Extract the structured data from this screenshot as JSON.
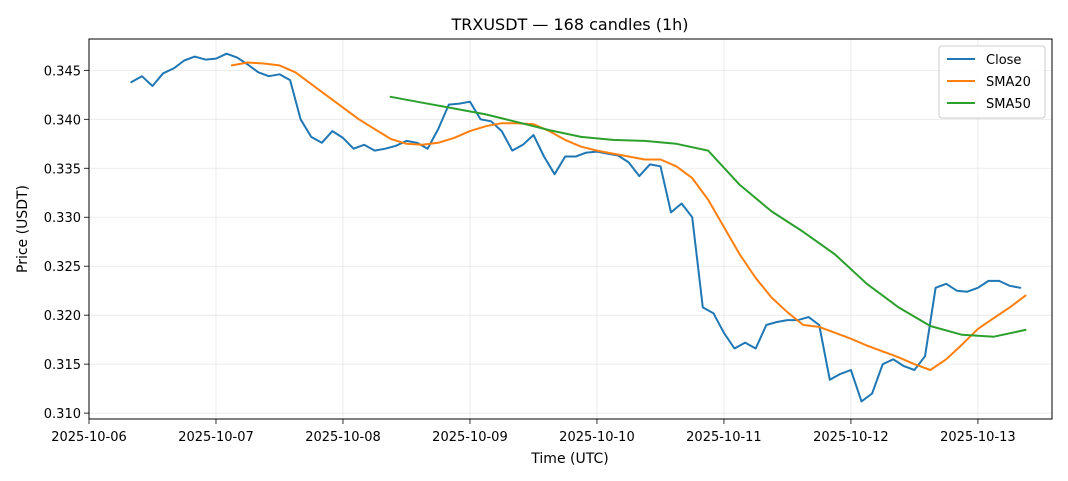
{
  "chart_data": {
    "type": "line",
    "title": "TRXUSDT — 168 candles (1h)",
    "xlabel": "Time (UTC)",
    "ylabel": "Price (USDT)",
    "x_ticks": [
      "2025-10-06",
      "2025-10-07",
      "2025-10-08",
      "2025-10-09",
      "2025-10-10",
      "2025-10-11",
      "2025-10-12",
      "2025-10-13"
    ],
    "y_ticks": [
      "0.310",
      "0.315",
      "0.320",
      "0.325",
      "0.330",
      "0.335",
      "0.340",
      "0.345"
    ],
    "xlim": [
      "2025-10-06 00:00",
      "2025-10-13 14:00"
    ],
    "ylim": [
      0.3094,
      0.3482
    ],
    "grid": true,
    "legend_position": "top-right",
    "series": [
      {
        "name": "Close",
        "color": "#1f77b4",
        "points": [
          [
            "2025-10-06 08:00",
            0.3438
          ],
          [
            "2025-10-06 10:00",
            0.3444
          ],
          [
            "2025-10-06 12:00",
            0.3434
          ],
          [
            "2025-10-06 14:00",
            0.3447
          ],
          [
            "2025-10-06 16:00",
            0.3452
          ],
          [
            "2025-10-06 18:00",
            0.346
          ],
          [
            "2025-10-06 20:00",
            0.3464
          ],
          [
            "2025-10-06 22:00",
            0.3461
          ],
          [
            "2025-10-07 00:00",
            0.3462
          ],
          [
            "2025-10-07 02:00",
            0.3467
          ],
          [
            "2025-10-07 04:00",
            0.3463
          ],
          [
            "2025-10-07 06:00",
            0.3456
          ],
          [
            "2025-10-07 08:00",
            0.3448
          ],
          [
            "2025-10-07 10:00",
            0.3444
          ],
          [
            "2025-10-07 12:00",
            0.3446
          ],
          [
            "2025-10-07 14:00",
            0.344
          ],
          [
            "2025-10-07 16:00",
            0.34
          ],
          [
            "2025-10-07 18:00",
            0.3382
          ],
          [
            "2025-10-07 20:00",
            0.3376
          ],
          [
            "2025-10-07 22:00",
            0.3388
          ],
          [
            "2025-10-08 00:00",
            0.3381
          ],
          [
            "2025-10-08 02:00",
            0.337
          ],
          [
            "2025-10-08 04:00",
            0.3374
          ],
          [
            "2025-10-08 06:00",
            0.3368
          ],
          [
            "2025-10-08 08:00",
            0.337
          ],
          [
            "2025-10-08 10:00",
            0.3373
          ],
          [
            "2025-10-08 12:00",
            0.3378
          ],
          [
            "2025-10-08 14:00",
            0.3376
          ],
          [
            "2025-10-08 16:00",
            0.337
          ],
          [
            "2025-10-08 18:00",
            0.339
          ],
          [
            "2025-10-08 20:00",
            0.3415
          ],
          [
            "2025-10-08 22:00",
            0.3416
          ],
          [
            "2025-10-09 00:00",
            0.3418
          ],
          [
            "2025-10-09 02:00",
            0.34
          ],
          [
            "2025-10-09 04:00",
            0.3398
          ],
          [
            "2025-10-09 06:00",
            0.3388
          ],
          [
            "2025-10-09 08:00",
            0.3368
          ],
          [
            "2025-10-09 10:00",
            0.3374
          ],
          [
            "2025-10-09 12:00",
            0.3384
          ],
          [
            "2025-10-09 14:00",
            0.3362
          ],
          [
            "2025-10-09 16:00",
            0.3344
          ],
          [
            "2025-10-09 18:00",
            0.3362
          ],
          [
            "2025-10-09 20:00",
            0.3362
          ],
          [
            "2025-10-09 22:00",
            0.3366
          ],
          [
            "2025-10-10 00:00",
            0.3367
          ],
          [
            "2025-10-10 02:00",
            0.3365
          ],
          [
            "2025-10-10 04:00",
            0.3363
          ],
          [
            "2025-10-10 06:00",
            0.3356
          ],
          [
            "2025-10-10 08:00",
            0.3342
          ],
          [
            "2025-10-10 10:00",
            0.3354
          ],
          [
            "2025-10-10 12:00",
            0.3352
          ],
          [
            "2025-10-10 14:00",
            0.3305
          ],
          [
            "2025-10-10 16:00",
            0.3314
          ],
          [
            "2025-10-10 18:00",
            0.33
          ],
          [
            "2025-10-10 20:00",
            0.3208
          ],
          [
            "2025-10-10 22:00",
            0.3202
          ],
          [
            "2025-10-11 00:00",
            0.3182
          ],
          [
            "2025-10-11 02:00",
            0.3166
          ],
          [
            "2025-10-11 04:00",
            0.3172
          ],
          [
            "2025-10-11 06:00",
            0.3166
          ],
          [
            "2025-10-11 08:00",
            0.319
          ],
          [
            "2025-10-11 10:00",
            0.3193
          ],
          [
            "2025-10-11 12:00",
            0.3195
          ],
          [
            "2025-10-11 14:00",
            0.3195
          ],
          [
            "2025-10-11 16:00",
            0.3198
          ],
          [
            "2025-10-11 18:00",
            0.319
          ],
          [
            "2025-10-11 20:00",
            0.3134
          ],
          [
            "2025-10-11 22:00",
            0.314
          ],
          [
            "2025-10-12 00:00",
            0.3144
          ],
          [
            "2025-10-12 02:00",
            0.3112
          ],
          [
            "2025-10-12 04:00",
            0.312
          ],
          [
            "2025-10-12 06:00",
            0.315
          ],
          [
            "2025-10-12 08:00",
            0.3155
          ],
          [
            "2025-10-12 10:00",
            0.3148
          ],
          [
            "2025-10-12 12:00",
            0.3144
          ],
          [
            "2025-10-12 14:00",
            0.3158
          ],
          [
            "2025-10-12 16:00",
            0.3228
          ],
          [
            "2025-10-12 18:00",
            0.3232
          ],
          [
            "2025-10-12 20:00",
            0.3225
          ],
          [
            "2025-10-12 22:00",
            0.3224
          ],
          [
            "2025-10-13 00:00",
            0.3228
          ],
          [
            "2025-10-13 02:00",
            0.3235
          ],
          [
            "2025-10-13 04:00",
            0.3235
          ],
          [
            "2025-10-13 06:00",
            0.323
          ],
          [
            "2025-10-13 08:00",
            0.3228
          ]
        ]
      },
      {
        "name": "SMA20",
        "color": "#ff7f0e",
        "points": [
          [
            "2025-10-07 03:00",
            0.3455
          ],
          [
            "2025-10-07 06:00",
            0.3458
          ],
          [
            "2025-10-07 09:00",
            0.3457
          ],
          [
            "2025-10-07 12:00",
            0.3455
          ],
          [
            "2025-10-07 15:00",
            0.3448
          ],
          [
            "2025-10-07 18:00",
            0.3436
          ],
          [
            "2025-10-07 21:00",
            0.3424
          ],
          [
            "2025-10-08 00:00",
            0.3412
          ],
          [
            "2025-10-08 03:00",
            0.34
          ],
          [
            "2025-10-08 06:00",
            0.339
          ],
          [
            "2025-10-08 09:00",
            0.338
          ],
          [
            "2025-10-08 12:00",
            0.3375
          ],
          [
            "2025-10-08 15:00",
            0.3374
          ],
          [
            "2025-10-08 18:00",
            0.3376
          ],
          [
            "2025-10-08 21:00",
            0.3381
          ],
          [
            "2025-10-09 00:00",
            0.3388
          ],
          [
            "2025-10-09 03:00",
            0.3393
          ],
          [
            "2025-10-09 06:00",
            0.3396
          ],
          [
            "2025-10-09 09:00",
            0.3396
          ],
          [
            "2025-10-09 12:00",
            0.3395
          ],
          [
            "2025-10-09 15:00",
            0.3388
          ],
          [
            "2025-10-09 18:00",
            0.3379
          ],
          [
            "2025-10-09 21:00",
            0.3372
          ],
          [
            "2025-10-10 00:00",
            0.3368
          ],
          [
            "2025-10-10 03:00",
            0.3365
          ],
          [
            "2025-10-10 06:00",
            0.3362
          ],
          [
            "2025-10-10 09:00",
            0.3359
          ],
          [
            "2025-10-10 12:00",
            0.3359
          ],
          [
            "2025-10-10 15:00",
            0.3352
          ],
          [
            "2025-10-10 18:00",
            0.334
          ],
          [
            "2025-10-10 21:00",
            0.3318
          ],
          [
            "2025-10-11 00:00",
            0.329
          ],
          [
            "2025-10-11 03:00",
            0.3262
          ],
          [
            "2025-10-11 06:00",
            0.3238
          ],
          [
            "2025-10-11 09:00",
            0.3218
          ],
          [
            "2025-10-11 12:00",
            0.3203
          ],
          [
            "2025-10-11 15:00",
            0.319
          ],
          [
            "2025-10-11 18:00",
            0.3188
          ],
          [
            "2025-10-11 21:00",
            0.3182
          ],
          [
            "2025-10-12 00:00",
            0.3176
          ],
          [
            "2025-10-12 03:00",
            0.3169
          ],
          [
            "2025-10-12 06:00",
            0.3163
          ],
          [
            "2025-10-12 09:00",
            0.3157
          ],
          [
            "2025-10-12 12:00",
            0.315
          ],
          [
            "2025-10-12 15:00",
            0.3144
          ],
          [
            "2025-10-12 18:00",
            0.3155
          ],
          [
            "2025-10-12 21:00",
            0.317
          ],
          [
            "2025-10-13 00:00",
            0.3186
          ],
          [
            "2025-10-13 03:00",
            0.3197
          ],
          [
            "2025-10-13 06:00",
            0.3208
          ],
          [
            "2025-10-13 09:00",
            0.322
          ]
        ]
      },
      {
        "name": "SMA50",
        "color": "#2ca02c",
        "points": [
          [
            "2025-10-08 09:00",
            0.3423
          ],
          [
            "2025-10-08 15:00",
            0.3417
          ],
          [
            "2025-10-08 21:00",
            0.3411
          ],
          [
            "2025-10-09 03:00",
            0.3405
          ],
          [
            "2025-10-09 09:00",
            0.3397
          ],
          [
            "2025-10-09 15:00",
            0.3389
          ],
          [
            "2025-10-09 21:00",
            0.3382
          ],
          [
            "2025-10-10 03:00",
            0.3379
          ],
          [
            "2025-10-10 09:00",
            0.3378
          ],
          [
            "2025-10-10 15:00",
            0.3375
          ],
          [
            "2025-10-10 21:00",
            0.3368
          ],
          [
            "2025-10-11 03:00",
            0.3333
          ],
          [
            "2025-10-11 09:00",
            0.3306
          ],
          [
            "2025-10-11 15:00",
            0.3285
          ],
          [
            "2025-10-11 21:00",
            0.3262
          ],
          [
            "2025-10-12 03:00",
            0.3232
          ],
          [
            "2025-10-12 09:00",
            0.3208
          ],
          [
            "2025-10-12 15:00",
            0.3189
          ],
          [
            "2025-10-12 21:00",
            0.318
          ],
          [
            "2025-10-13 03:00",
            0.3178
          ],
          [
            "2025-10-13 09:00",
            0.3185
          ]
        ]
      }
    ]
  }
}
